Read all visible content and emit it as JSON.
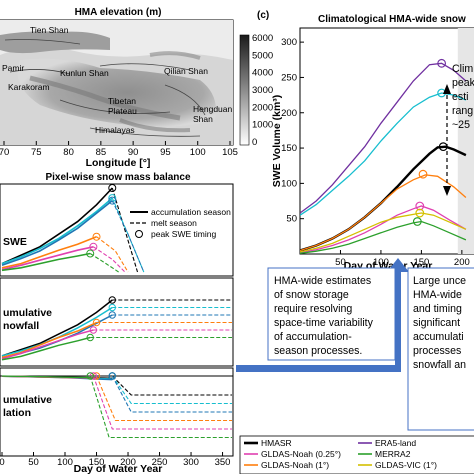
{
  "map": {
    "title": "HMA elevation (m)",
    "xlabel": "Longitude [°]",
    "xticks": [
      "70",
      "75",
      "80",
      "85",
      "90",
      "95",
      "100",
      "105"
    ],
    "places": [
      "Tien Shan",
      "Pamir",
      "Kunlun Shan",
      "Qilian Shan",
      "Karakoram",
      "Tibetan",
      "Plateau",
      "Hengduan",
      "Shan",
      "Himalayas"
    ],
    "colorbar_ticks": [
      "6000",
      "5000",
      "4000",
      "3000",
      "2000",
      "1000",
      "0"
    ]
  },
  "balance": {
    "title": "Pixel-wise snow mass balance",
    "panels": [
      {
        "label": "SWE"
      },
      {
        "label_lines": [
          "umulative",
          "nowfall"
        ]
      },
      {
        "label_lines": [
          "umulative",
          "lation"
        ]
      }
    ],
    "legend": [
      "accumulation season",
      "melt season",
      "peak SWE timing"
    ],
    "xlabel": "Day of Water Year",
    "xticks": [
      "0",
      "50",
      "100",
      "150",
      "200",
      "250",
      "300",
      "350"
    ]
  },
  "panel_c": {
    "tag": "(c)",
    "title": "Climatological HMA-wide snow",
    "ylabel": "SWE Volume (km³)",
    "yticks": [
      "300",
      "250",
      "200",
      "150",
      "100",
      "50"
    ],
    "xticks": [
      "50",
      "100",
      "150",
      "200"
    ],
    "xlabel": "Day of Water Year",
    "annotation_lines": [
      "Clim",
      "peak",
      "esti",
      "rang",
      "~25"
    ]
  },
  "callouts": {
    "left_lines": [
      "HMA-wide estimates",
      "of snow storage",
      "require resolving",
      "space-time variability",
      "of accumulation-",
      "season processes."
    ],
    "right_lines": [
      "Large unce",
      "HMA-wide",
      "and timing",
      "significant",
      "accumulati",
      "processes",
      "snowfall an"
    ]
  },
  "legend_bottom": [
    "HMASR",
    "ERA5-land",
    "GLDAS-Noah (0.25°)",
    "MERRA2",
    "GLDAS-Noah (1°)",
    "GLDAS-VIC (1°)"
  ],
  "colors": {
    "HMASR": "#000000",
    "ERA5-land": "#7030a0",
    "GLDAS-Noah (0.25°)": "#e040b0",
    "MERRA2": "#2ca02c",
    "GLDAS-Noah (1°)": "#ff7f0e",
    "GLDAS-VIC (1°)": "#d4c000",
    "MERIT-like blue": "#1f77b4",
    "cyan": "#17becf",
    "arrow": "#4472c4"
  },
  "chart_data": [
    {
      "type": "line",
      "title": "Climatological HMA-wide snow",
      "xlabel": "Day of Water Year",
      "ylabel": "SWE Volume (km³)",
      "xlim": [
        0,
        215
      ],
      "ylim": [
        0,
        320
      ],
      "series": [
        {
          "name": "",
          "color": "#7030a0",
          "x": [
            0,
            20,
            40,
            60,
            80,
            100,
            120,
            140,
            160,
            175,
            190,
            205
          ],
          "y": [
            58,
            75,
            98,
            125,
            152,
            185,
            215,
            245,
            268,
            270,
            260,
            245
          ]
        },
        {
          "name": "",
          "color": "#17becf",
          "x": [
            0,
            20,
            40,
            60,
            80,
            100,
            120,
            140,
            160,
            175,
            190,
            205
          ],
          "y": [
            55,
            70,
            90,
            110,
            132,
            160,
            185,
            208,
            222,
            228,
            225,
            218
          ]
        },
        {
          "name": "HMASR",
          "color": "#000000",
          "x": [
            0,
            20,
            40,
            60,
            80,
            100,
            120,
            140,
            160,
            170,
            180,
            190,
            205
          ],
          "y": [
            5,
            12,
            22,
            35,
            52,
            72,
            95,
            120,
            142,
            151,
            152,
            148,
            140
          ]
        },
        {
          "name": "",
          "color": "#ff7f0e",
          "x": [
            0,
            20,
            40,
            60,
            80,
            100,
            120,
            140,
            155,
            170,
            190,
            205
          ],
          "y": [
            5,
            12,
            22,
            35,
            52,
            72,
            92,
            105,
            112,
            110,
            95,
            80
          ]
        },
        {
          "name": "",
          "color": "#e040b0",
          "x": [
            0,
            20,
            40,
            60,
            80,
            100,
            120,
            140,
            150,
            165,
            185,
            205
          ],
          "y": [
            2,
            6,
            12,
            20,
            30,
            42,
            55,
            64,
            68,
            62,
            48,
            35
          ]
        },
        {
          "name": "",
          "color": "#d4c000",
          "x": [
            0,
            20,
            40,
            60,
            80,
            100,
            120,
            140,
            150,
            165,
            185,
            205
          ],
          "y": [
            3,
            8,
            15,
            25,
            35,
            45,
            52,
            56,
            58,
            55,
            45,
            35
          ]
        },
        {
          "name": "",
          "color": "#2ca02c",
          "x": [
            0,
            20,
            40,
            60,
            80,
            100,
            120,
            140,
            150,
            165,
            185,
            205
          ],
          "y": [
            1,
            4,
            8,
            14,
            22,
            30,
            38,
            44,
            46,
            40,
            30,
            20
          ]
        }
      ],
      "peaks": [
        {
          "x": 175,
          "y": 270,
          "color": "#7030a0"
        },
        {
          "x": 175,
          "y": 228,
          "color": "#17becf"
        },
        {
          "x": 177,
          "y": 152,
          "color": "#000000"
        },
        {
          "x": 152,
          "y": 113,
          "color": "#ff7f0e"
        },
        {
          "x": 148,
          "y": 68,
          "color": "#e040b0"
        },
        {
          "x": 148,
          "y": 58,
          "color": "#d4c000"
        },
        {
          "x": 145,
          "y": 46,
          "color": "#2ca02c"
        }
      ],
      "shaded_from_x": 195
    },
    {
      "type": "line",
      "title": "Pixel-wise snow mass balance — SWE",
      "xlabel": "Day of Water Year",
      "xlim": [
        0,
        365
      ],
      "ylim": [
        0,
        1
      ],
      "series": [
        {
          "name": "",
          "color": "#000000",
          "x": [
            0,
            30,
            60,
            90,
            120,
            150,
            175
          ],
          "y": [
            0.1,
            0.2,
            0.3,
            0.45,
            0.6,
            0.8,
            1.0
          ],
          "melt_x": [
            175,
            195,
            215
          ],
          "melt_y": [
            1.0,
            0.5,
            0.0
          ]
        },
        {
          "name": "",
          "color": "#17becf",
          "x": [
            0,
            30,
            60,
            90,
            120,
            150,
            175
          ],
          "y": [
            0.1,
            0.18,
            0.28,
            0.4,
            0.55,
            0.72,
            0.88
          ],
          "melt_x": [
            175,
            200,
            225
          ],
          "melt_y": [
            0.88,
            0.45,
            0.0
          ]
        },
        {
          "name": "",
          "color": "#1f77b4",
          "x": [
            0,
            30,
            60,
            90,
            120,
            150,
            175
          ],
          "y": [
            0.08,
            0.16,
            0.25,
            0.38,
            0.52,
            0.7,
            0.85
          ],
          "melt_x": [
            175,
            200,
            225
          ],
          "melt_y": [
            0.85,
            0.45,
            0.0
          ]
        },
        {
          "name": "",
          "color": "#ff7f0e",
          "x": [
            0,
            30,
            60,
            90,
            120,
            150
          ],
          "y": [
            0.05,
            0.1,
            0.18,
            0.26,
            0.33,
            0.42
          ],
          "melt_x": [
            150,
            180,
            200
          ],
          "melt_y": [
            0.42,
            0.25,
            0.0
          ]
        },
        {
          "name": "",
          "color": "#e040b0",
          "x": [
            0,
            30,
            60,
            90,
            120,
            145
          ],
          "y": [
            0.03,
            0.08,
            0.14,
            0.2,
            0.26,
            0.3
          ],
          "melt_x": [
            145,
            175,
            195
          ],
          "melt_y": [
            0.3,
            0.15,
            0.0
          ]
        },
        {
          "name": "",
          "color": "#2ca02c",
          "x": [
            0,
            30,
            60,
            90,
            120,
            140
          ],
          "y": [
            0.02,
            0.05,
            0.1,
            0.15,
            0.19,
            0.22
          ],
          "melt_x": [
            140,
            165,
            185
          ],
          "melt_y": [
            0.22,
            0.1,
            0.0
          ]
        }
      ]
    }
  ]
}
